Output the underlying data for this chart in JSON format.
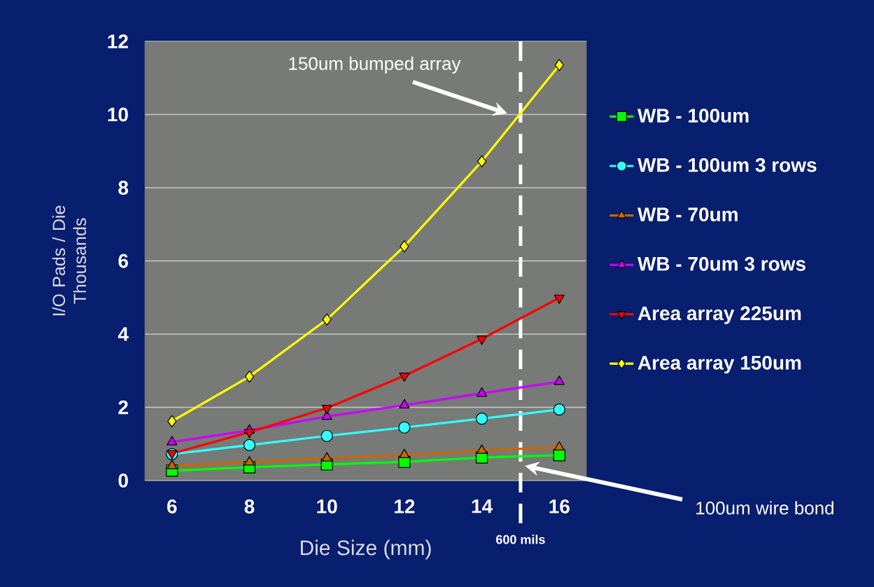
{
  "chart_data": {
    "type": "line",
    "xlabel": "Die Size (mm)",
    "ylabel": "I/O Pads / Die Thousands",
    "x": [
      6,
      8,
      10,
      12,
      14,
      16
    ],
    "series": [
      {
        "name": "WB - 100um",
        "color": "#00ff00",
        "marker": "square",
        "values": [
          0.27,
          0.36,
          0.44,
          0.51,
          0.63,
          0.69
        ]
      },
      {
        "name": "WB - 100um 3 rows",
        "color": "#33ffff",
        "marker": "circle",
        "values": [
          0.72,
          0.97,
          1.22,
          1.45,
          1.69,
          1.94
        ]
      },
      {
        "name": "WB - 70um",
        "color": "#cc6600",
        "marker": "triangle",
        "values": [
          0.4,
          0.5,
          0.61,
          0.7,
          0.82,
          0.91
        ]
      },
      {
        "name": "WB - 70um 3 rows",
        "color": "#cc00ff",
        "marker": "triangle",
        "values": [
          1.05,
          1.37,
          1.75,
          2.06,
          2.38,
          2.7
        ]
      },
      {
        "name": "Area array 225um",
        "color": "#ff0000",
        "marker": "triangle down",
        "values": [
          0.74,
          1.32,
          1.98,
          2.86,
          3.87,
          4.99
        ]
      },
      {
        "name": "Area array 150um",
        "color": "#ffff00",
        "marker": "diamond",
        "values": [
          1.62,
          2.84,
          4.4,
          6.4,
          8.72,
          11.35
        ]
      }
    ],
    "xlim": [
      5.3,
      16.7
    ],
    "xticks": [
      6,
      8,
      10,
      12,
      14,
      16
    ],
    "ylim": [
      0,
      12
    ],
    "yticks": [
      0,
      2,
      4,
      6,
      8,
      10,
      12
    ],
    "grid": "y",
    "legend": "right",
    "ref_lines": [
      {
        "axis": "x",
        "value": 15,
        "label": "600 mils",
        "color": "#ffffff",
        "line_style": "dashed"
      }
    ],
    "annotations": [
      "150um bumped array",
      "100um wire bond"
    ]
  }
}
